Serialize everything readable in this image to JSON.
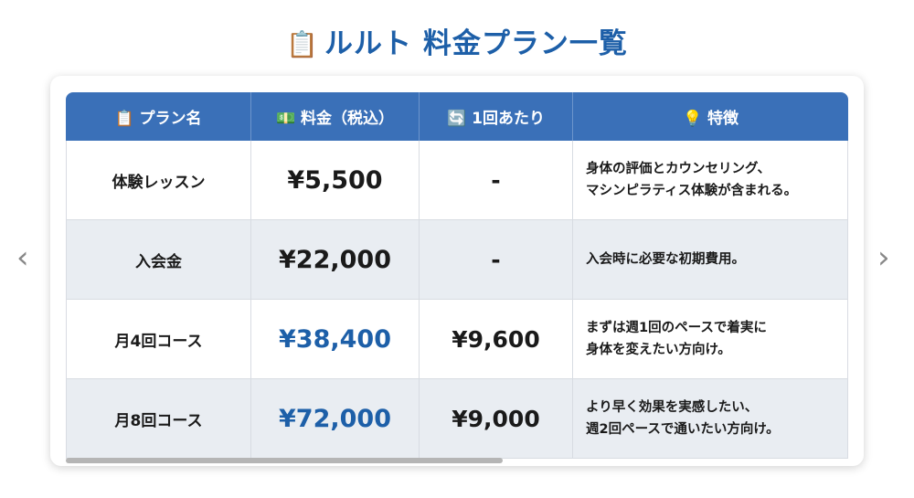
{
  "title": {
    "icon": "clipboard-icon",
    "text": "ルルト 料金プラン一覧"
  },
  "table": {
    "headers": [
      {
        "icon": "📋",
        "icon_name": "clipboard-icon",
        "label": "プラン名"
      },
      {
        "icon": "💵",
        "icon_name": "money-icon",
        "label": "料金（税込）"
      },
      {
        "icon": "🔄",
        "icon_name": "refresh-icon",
        "label": "1回あたり"
      },
      {
        "icon": "💡",
        "icon_name": "lightbulb-icon",
        "label": "特徴"
      }
    ],
    "rows": [
      {
        "name": "体験レッスン",
        "price": "¥5,500",
        "per": "-",
        "feature": "身体の評価とカウンセリング、\nマシンピラティス体験が含まれる。",
        "highlight": false
      },
      {
        "name": "入会金",
        "price": "¥22,000",
        "per": "-",
        "feature": "入会時に必要な初期費用。",
        "highlight": false
      },
      {
        "name": "月4回コース",
        "price": "¥38,400",
        "per": "¥9,600",
        "feature": "まずは週1回のペースで着実に\n身体を変えたい方向け。",
        "highlight": true
      },
      {
        "name": "月8回コース",
        "price": "¥72,000",
        "per": "¥9,000",
        "feature": "より早く効果を実感したい、\n週2回ペースで通いたい方向け。",
        "highlight": true
      }
    ]
  },
  "nav": {
    "prev": "‹",
    "next": "›"
  },
  "colors": {
    "accent": "#1d5fa8",
    "header_bg": "#3a70b8",
    "alt_row": "#e9edf2"
  }
}
